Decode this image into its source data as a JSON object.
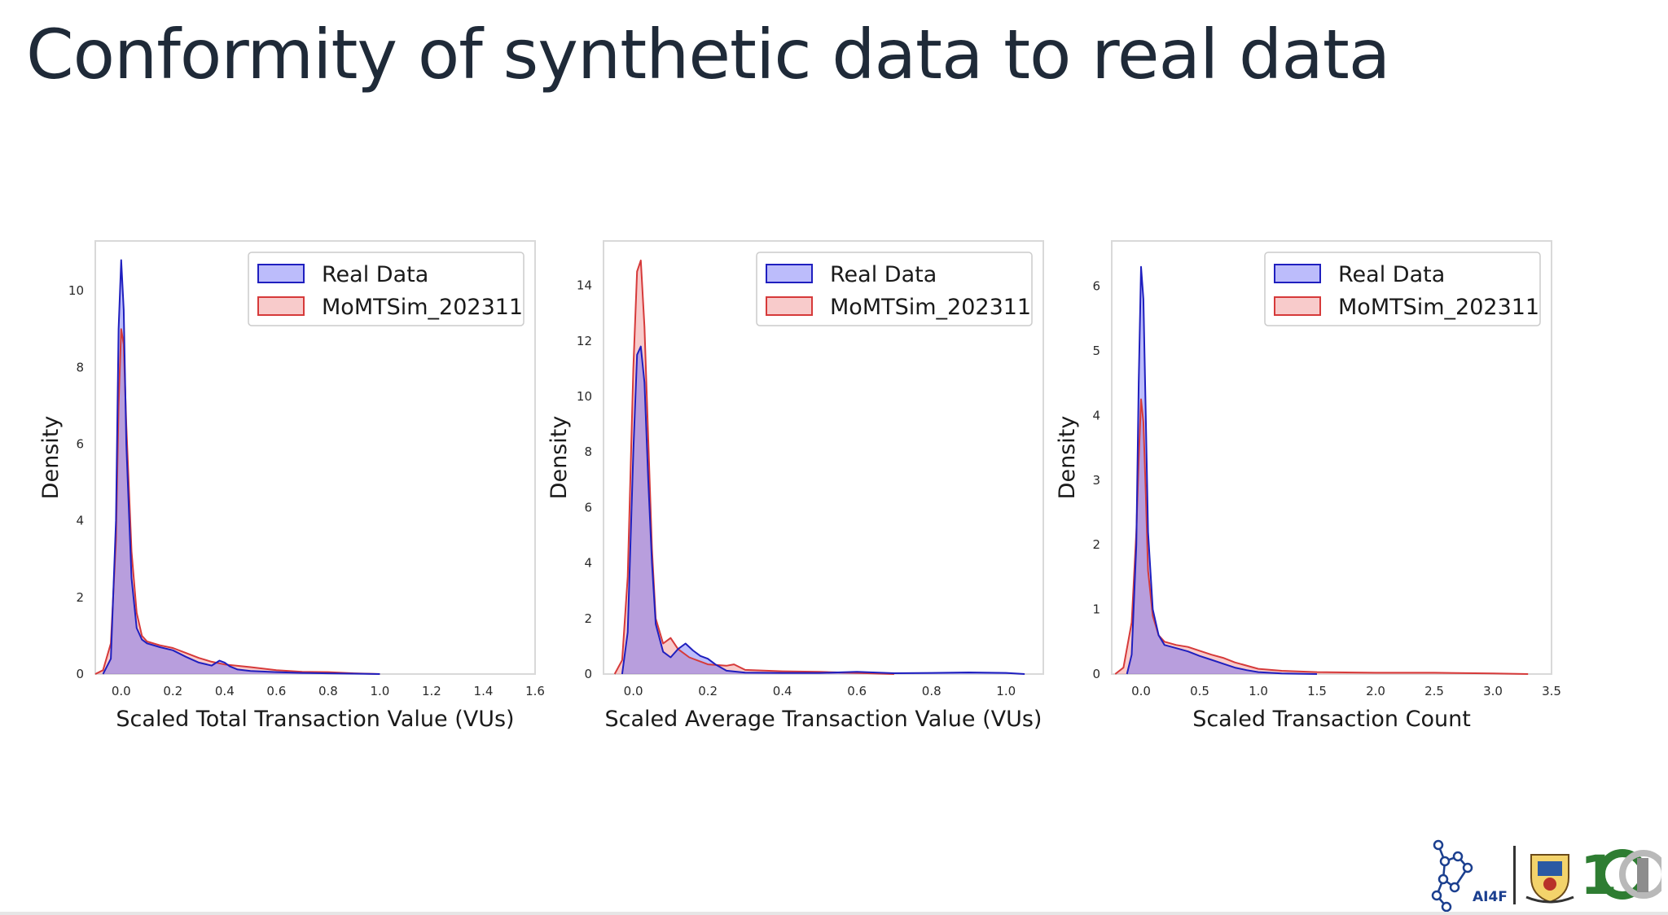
{
  "slide": {
    "title": "Conformity of synthetic data to real data"
  },
  "logos": {
    "ai4f_label": "AI4F"
  },
  "colors": {
    "real": "#1f1fbf",
    "real_fill": "rgba(95,95,245,0.42)",
    "sim": "#d63a3a",
    "sim_fill": "rgba(240,140,140,0.45)",
    "frame": "#d9d9d9",
    "title": "#1f2a38"
  },
  "chart_data": [
    {
      "type": "area",
      "xlabel": "Scaled Total Transaction Value (VUs)",
      "ylabel": "Density",
      "xlim": [
        -0.1,
        1.6
      ],
      "ylim": [
        0,
        11.3
      ],
      "xticks": [
        0.0,
        0.2,
        0.4,
        0.6,
        0.8,
        1.0,
        1.2,
        1.4,
        1.6
      ],
      "xtick_labels": [
        "0.0",
        "0.2",
        "0.4",
        "0.6",
        "0.8",
        "1.0",
        "1.2",
        "1.4",
        "1.6"
      ],
      "yticks": [
        0,
        2,
        4,
        6,
        8,
        10
      ],
      "ytick_labels": [
        "0",
        "2",
        "4",
        "6",
        "8",
        "10"
      ],
      "legend": "top-right",
      "grid": false,
      "series": [
        {
          "name": "Real Data",
          "x": [
            -0.07,
            -0.04,
            -0.02,
            -0.01,
            0.0,
            0.01,
            0.02,
            0.04,
            0.06,
            0.08,
            0.1,
            0.15,
            0.2,
            0.25,
            0.3,
            0.35,
            0.38,
            0.4,
            0.42,
            0.45,
            0.5,
            0.6,
            0.7,
            0.8,
            0.9,
            1.0
          ],
          "y": [
            0.0,
            0.4,
            4.0,
            9.0,
            10.8,
            9.5,
            6.0,
            2.5,
            1.2,
            0.9,
            0.8,
            0.7,
            0.62,
            0.45,
            0.3,
            0.22,
            0.35,
            0.3,
            0.2,
            0.12,
            0.08,
            0.05,
            0.03,
            0.02,
            0.01,
            0.0
          ]
        },
        {
          "name": "MoMTSim_202311",
          "x": [
            -0.1,
            -0.07,
            -0.04,
            -0.02,
            -0.01,
            0.0,
            0.01,
            0.02,
            0.04,
            0.06,
            0.08,
            0.1,
            0.15,
            0.2,
            0.25,
            0.3,
            0.35,
            0.4,
            0.5,
            0.6,
            0.7,
            0.8,
            0.9,
            1.0
          ],
          "y": [
            0.0,
            0.1,
            0.8,
            3.5,
            7.0,
            9.0,
            8.6,
            6.5,
            3.2,
            1.6,
            1.0,
            0.85,
            0.75,
            0.68,
            0.55,
            0.42,
            0.32,
            0.25,
            0.18,
            0.1,
            0.06,
            0.05,
            0.02,
            0.0
          ]
        }
      ]
    },
    {
      "type": "area",
      "xlabel": "Scaled Average Transaction Value (VUs)",
      "ylabel": "Density",
      "xlim": [
        -0.08,
        1.1
      ],
      "ylim": [
        0,
        15.6
      ],
      "xticks": [
        0.0,
        0.2,
        0.4,
        0.6,
        0.8,
        1.0
      ],
      "xtick_labels": [
        "0.0",
        "0.2",
        "0.4",
        "0.6",
        "0.8",
        "1.0"
      ],
      "yticks": [
        0,
        2,
        4,
        6,
        8,
        10,
        12,
        14
      ],
      "ytick_labels": [
        "0",
        "2",
        "4",
        "6",
        "8",
        "10",
        "12",
        "14"
      ],
      "legend": "top-right",
      "grid": false,
      "series": [
        {
          "name": "Real Data",
          "x": [
            -0.03,
            -0.015,
            0.0,
            0.01,
            0.02,
            0.03,
            0.04,
            0.05,
            0.06,
            0.08,
            0.1,
            0.12,
            0.14,
            0.16,
            0.18,
            0.2,
            0.22,
            0.25,
            0.3,
            0.4,
            0.5,
            0.6,
            0.7,
            0.8,
            0.9,
            1.0,
            1.05
          ],
          "y": [
            0.0,
            1.5,
            8.0,
            11.5,
            11.8,
            10.5,
            7.0,
            4.0,
            1.8,
            0.8,
            0.6,
            0.9,
            1.1,
            0.85,
            0.65,
            0.55,
            0.35,
            0.12,
            0.05,
            0.04,
            0.04,
            0.08,
            0.03,
            0.04,
            0.06,
            0.04,
            0.0
          ]
        },
        {
          "name": "MoMTSim_202311",
          "x": [
            -0.05,
            -0.03,
            -0.015,
            0.0,
            0.01,
            0.02,
            0.03,
            0.04,
            0.05,
            0.06,
            0.08,
            0.1,
            0.12,
            0.15,
            0.2,
            0.25,
            0.27,
            0.3,
            0.4,
            0.5,
            0.6,
            0.7
          ],
          "y": [
            0.0,
            0.5,
            3.5,
            11.0,
            14.5,
            14.9,
            12.5,
            8.5,
            4.5,
            2.0,
            1.1,
            1.3,
            0.9,
            0.6,
            0.35,
            0.3,
            0.35,
            0.15,
            0.1,
            0.08,
            0.04,
            0.0
          ]
        }
      ]
    },
    {
      "type": "area",
      "xlabel": "Scaled Transaction Count",
      "ylabel": "Density",
      "xlim": [
        -0.25,
        3.5
      ],
      "ylim": [
        0,
        6.7
      ],
      "xticks": [
        0.0,
        0.5,
        1.0,
        1.5,
        2.0,
        2.5,
        3.0,
        3.5
      ],
      "xtick_labels": [
        "0.0",
        "0.5",
        "1.0",
        "1.5",
        "2.0",
        "2.5",
        "3.0",
        "3.5"
      ],
      "yticks": [
        0,
        1,
        2,
        3,
        4,
        5,
        6
      ],
      "ytick_labels": [
        "0",
        "1",
        "2",
        "3",
        "4",
        "5",
        "6"
      ],
      "legend": "top-right",
      "grid": false,
      "series": [
        {
          "name": "Real Data",
          "x": [
            -0.12,
            -0.08,
            -0.04,
            -0.02,
            0.0,
            0.02,
            0.04,
            0.06,
            0.1,
            0.15,
            0.2,
            0.3,
            0.4,
            0.5,
            0.6,
            0.7,
            0.8,
            0.9,
            1.0,
            1.2,
            1.5
          ],
          "y": [
            0.0,
            0.3,
            2.0,
            4.5,
            6.3,
            5.8,
            4.0,
            2.2,
            1.0,
            0.6,
            0.45,
            0.4,
            0.35,
            0.28,
            0.22,
            0.16,
            0.1,
            0.06,
            0.03,
            0.01,
            0.0
          ]
        },
        {
          "name": "MoMTSim_202311",
          "x": [
            -0.22,
            -0.15,
            -0.08,
            -0.04,
            -0.02,
            0.0,
            0.02,
            0.04,
            0.06,
            0.1,
            0.15,
            0.2,
            0.3,
            0.4,
            0.5,
            0.6,
            0.7,
            0.8,
            1.0,
            1.2,
            1.5,
            2.0,
            2.5,
            3.0,
            3.3
          ],
          "y": [
            0.0,
            0.1,
            0.8,
            2.2,
            3.3,
            4.25,
            3.9,
            2.8,
            1.6,
            0.9,
            0.6,
            0.5,
            0.45,
            0.42,
            0.36,
            0.3,
            0.25,
            0.18,
            0.08,
            0.05,
            0.03,
            0.02,
            0.02,
            0.01,
            0.0
          ]
        }
      ]
    }
  ]
}
